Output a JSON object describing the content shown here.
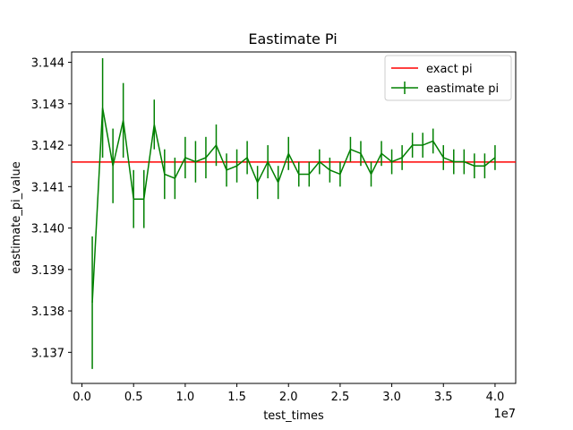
{
  "chart_data": {
    "type": "line",
    "title": "Eastimate Pi",
    "xlabel": "test_times",
    "ylabel": "eastimate_pi_value",
    "x_offset_text": "1e7",
    "xlim": [
      -1000000.0,
      42000000.0
    ],
    "ylim": [
      3.13625,
      3.14425
    ],
    "x_ticks": [
      0,
      5000000,
      10000000,
      15000000,
      20000000,
      25000000,
      30000000,
      35000000,
      40000000
    ],
    "x_tick_labels": [
      "0.0",
      "0.5",
      "1.0",
      "1.5",
      "2.0",
      "2.5",
      "3.0",
      "3.5",
      "4.0"
    ],
    "y_ticks": [
      3.137,
      3.138,
      3.139,
      3.14,
      3.141,
      3.142,
      3.143,
      3.144
    ],
    "y_tick_labels": [
      "3.137",
      "3.138",
      "3.139",
      "3.140",
      "3.141",
      "3.142",
      "3.143",
      "3.144"
    ],
    "grid": false,
    "legend_position": "top-right",
    "reference_line": {
      "name": "exact pi",
      "y": 3.141593,
      "color": "#ff0000"
    },
    "series": [
      {
        "name": "eastimate pi",
        "color": "#008000",
        "x": [
          1000000,
          2000000,
          3000000,
          4000000,
          5000000,
          6000000,
          7000000,
          8000000,
          9000000,
          10000000,
          11000000,
          12000000,
          13000000,
          14000000,
          15000000,
          16000000,
          17000000,
          18000000,
          19000000,
          20000000,
          21000000,
          22000000,
          23000000,
          24000000,
          25000000,
          26000000,
          27000000,
          28000000,
          29000000,
          30000000,
          31000000,
          32000000,
          33000000,
          34000000,
          35000000,
          36000000,
          37000000,
          38000000,
          39000000,
          40000000
        ],
        "y": [
          3.1382,
          3.1429,
          3.1415,
          3.1426,
          3.1407,
          3.1407,
          3.1425,
          3.1413,
          3.1412,
          3.1417,
          3.1416,
          3.1417,
          3.142,
          3.1414,
          3.1415,
          3.1417,
          3.1411,
          3.1416,
          3.1411,
          3.1418,
          3.1413,
          3.1413,
          3.1416,
          3.1414,
          3.1413,
          3.1419,
          3.1418,
          3.1413,
          3.1418,
          3.1416,
          3.1417,
          3.142,
          3.142,
          3.1421,
          3.1417,
          3.1416,
          3.1416,
          3.1415,
          3.1415,
          3.1417
        ],
        "yerr": [
          0.0016,
          0.0012,
          0.0009,
          0.0009,
          0.0007,
          0.0007,
          0.0006,
          0.0006,
          0.0005,
          0.0005,
          0.0005,
          0.0005,
          0.0005,
          0.0004,
          0.0004,
          0.0004,
          0.0004,
          0.0004,
          0.0004,
          0.0004,
          0.0003,
          0.0003,
          0.0003,
          0.0003,
          0.0003,
          0.0003,
          0.0003,
          0.0003,
          0.0003,
          0.0003,
          0.0003,
          0.0003,
          0.0003,
          0.0003,
          0.0003,
          0.0003,
          0.0003,
          0.0003,
          0.0003,
          0.0003
        ]
      }
    ]
  }
}
